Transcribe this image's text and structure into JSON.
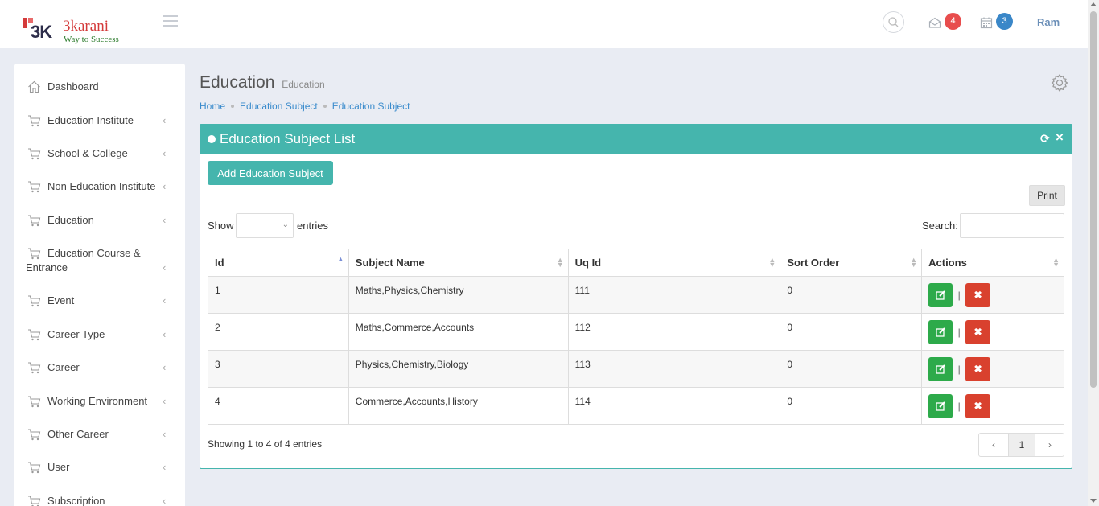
{
  "header": {
    "logo_mark": "3K",
    "logo_brand": "3karani",
    "logo_tagline": "Way to Success",
    "mail_count": "4",
    "calendar_count": "3",
    "user_name": "Ram",
    "badge_colors": {
      "mail": "#e84d4d",
      "calendar": "#3a87c8"
    }
  },
  "sidebar": {
    "items": [
      {
        "label": "Dashboard",
        "icon": "home-icon"
      },
      {
        "label": "Education Institute",
        "icon": "cart-icon"
      },
      {
        "label": "School & College",
        "icon": "cart-icon"
      },
      {
        "label": "Non Education Institute",
        "icon": "cart-icon"
      },
      {
        "label": "Education",
        "icon": "cart-icon"
      },
      {
        "label_line1": "Education Course &",
        "label_line2": "Entrance",
        "icon": "cart-icon"
      },
      {
        "label": "Event",
        "icon": "cart-icon"
      },
      {
        "label": "Career Type",
        "icon": "cart-icon"
      },
      {
        "label": "Career",
        "icon": "cart-icon"
      },
      {
        "label": "Working Environment",
        "icon": "cart-icon"
      },
      {
        "label": "Other Career",
        "icon": "cart-icon"
      },
      {
        "label": "User",
        "icon": "cart-icon"
      },
      {
        "label": "Subscription",
        "icon": "cart-icon"
      }
    ]
  },
  "page": {
    "title": "Education",
    "subtitle": "Education",
    "breadcrumb": [
      "Home",
      "Education Subject",
      "Education Subject"
    ]
  },
  "panel": {
    "title": "Education Subject List",
    "add_button": "Add Education Subject",
    "print_button": "Print",
    "show_label": "Show",
    "entries_label": "entries",
    "search_label": "Search:",
    "search_value": "",
    "columns": [
      "Id",
      "Subject Name",
      "Uq Id",
      "Sort Order",
      "Actions"
    ],
    "rows": [
      {
        "id": "1",
        "subject": "Maths,Physics,Chemistry",
        "uqid": "111",
        "sort": "0"
      },
      {
        "id": "2",
        "subject": "Maths,Commerce,Accounts",
        "uqid": "112",
        "sort": "0"
      },
      {
        "id": "3",
        "subject": "Physics,Chemistry,Biology",
        "uqid": "113",
        "sort": "0"
      },
      {
        "id": "4",
        "subject": "Commerce,Accounts,History",
        "uqid": "114",
        "sort": "0"
      }
    ],
    "action_separator": "|",
    "showing_text": "Showing 1 to 4 of 4 entries",
    "current_page": "1"
  },
  "colors": {
    "accent": "#45b5ad",
    "edit": "#2daa4a",
    "delete": "#d9412e"
  }
}
